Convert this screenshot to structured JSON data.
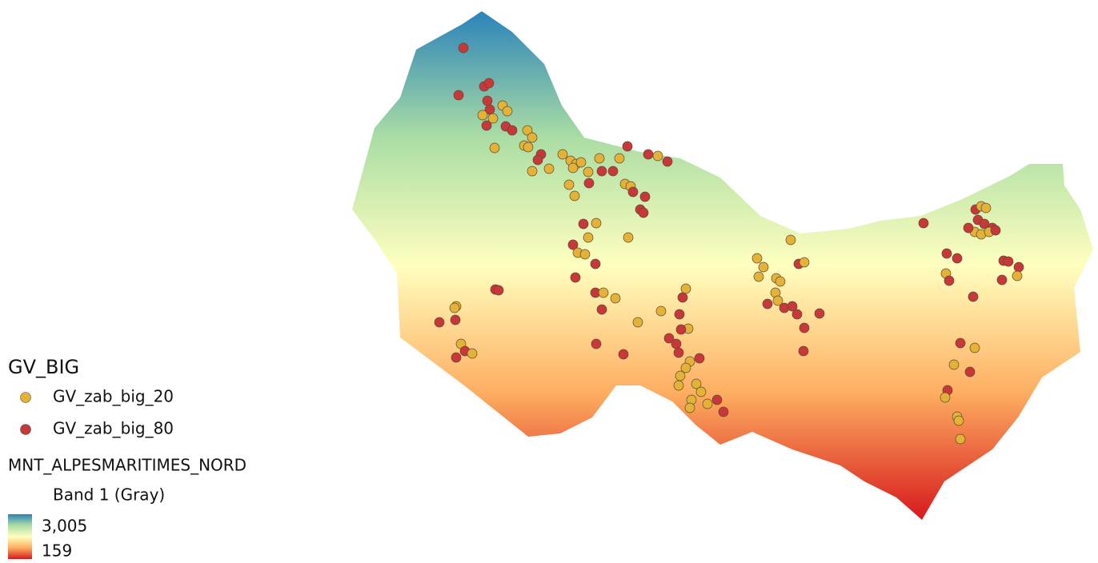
{
  "legend": {
    "layers": [
      {
        "title": "GV_BIG",
        "items": [
          {
            "label": "GV_zab_big_20",
            "color": "#e3b236"
          },
          {
            "label": "GV_zab_big_80",
            "color": "#c8373a"
          }
        ]
      },
      {
        "title": "MNT_ALPESMARITIMES_NORD",
        "subtitle": "Band 1 (Gray)",
        "ramp": {
          "max": {
            "value": 3005,
            "label": "3,005"
          },
          "min": 159,
          "colors": [
            "#2b83ba",
            "#abdda4",
            "#ffffbf",
            "#fdae61",
            "#d7191c"
          ]
        }
      }
    ]
  }
}
